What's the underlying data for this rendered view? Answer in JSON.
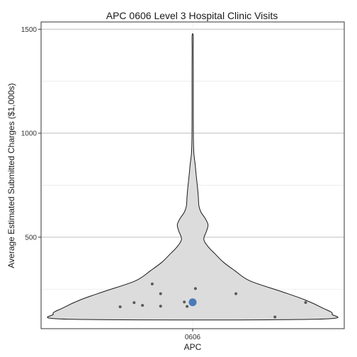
{
  "chart_data": {
    "type": "violin",
    "title": "APC 0606 Level 3 Hospital Clinic Visits",
    "xlabel": "APC",
    "ylabel": "Average Estimated Submitted Charges ($1,000s)",
    "categories": [
      "0606"
    ],
    "ylim": [
      60,
      1535
    ],
    "yticks": [
      500,
      1000,
      1500
    ],
    "yticks_labels": [
      "500",
      "1000",
      "1500"
    ],
    "grid": true,
    "violin": {
      "category": "0606",
      "density_profile": [
        [
          105,
          0.86
        ],
        [
          130,
          1.0
        ],
        [
          160,
          0.93
        ],
        [
          200,
          0.8
        ],
        [
          240,
          0.63
        ],
        [
          290,
          0.41
        ],
        [
          340,
          0.3
        ],
        [
          380,
          0.22
        ],
        [
          420,
          0.16
        ],
        [
          455,
          0.11
        ],
        [
          490,
          0.08
        ],
        [
          530,
          0.1
        ],
        [
          560,
          0.11
        ],
        [
          590,
          0.09
        ],
        [
          620,
          0.06
        ],
        [
          650,
          0.045
        ],
        [
          700,
          0.04
        ],
        [
          750,
          0.033
        ],
        [
          800,
          0.025
        ],
        [
          850,
          0.018
        ],
        [
          900,
          0.009
        ],
        [
          950,
          0.006
        ],
        [
          1000,
          0.005
        ],
        [
          1100,
          0.0045
        ],
        [
          1200,
          0.0045
        ],
        [
          1300,
          0.0045
        ],
        [
          1400,
          0.004
        ],
        [
          1470,
          0.004
        ]
      ],
      "fill": "#dcdcdc",
      "stroke": "#1a1a1a"
    },
    "points": [
      {
        "x": -0.52,
        "y": 165
      },
      {
        "x": -0.42,
        "y": 185
      },
      {
        "x": -0.36,
        "y": 172
      },
      {
        "x": -0.29,
        "y": 275
      },
      {
        "x": -0.23,
        "y": 228
      },
      {
        "x": -0.23,
        "y": 168
      },
      {
        "x": -0.06,
        "y": 188
      },
      {
        "x": -0.04,
        "y": 167
      },
      {
        "x": 0.02,
        "y": 253
      },
      {
        "x": 0.31,
        "y": 228
      },
      {
        "x": 0.59,
        "y": 116
      },
      {
        "x": 0.81,
        "y": 186
      }
    ],
    "mean_point": {
      "x": 0,
      "y": 187,
      "color": "#4a7ab8"
    },
    "point_color": "#595959"
  }
}
